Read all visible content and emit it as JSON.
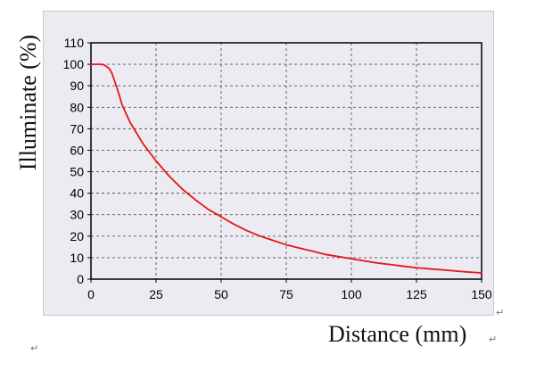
{
  "chart_data": {
    "type": "line",
    "title": "",
    "xlabel": "Distance (mm)",
    "ylabel": "Illuminate (%)",
    "xlim": [
      0,
      150
    ],
    "ylim": [
      0,
      110
    ],
    "xticks": [
      "0",
      "25",
      "50",
      "75",
      "100",
      "125",
      "150"
    ],
    "yticks": [
      "0",
      "10",
      "20",
      "30",
      "40",
      "50",
      "60",
      "70",
      "80",
      "90",
      "100",
      "110"
    ],
    "grid": true,
    "legend": "none",
    "colors": {
      "line": "#e8151b",
      "grid": "#555555",
      "background": "#ecebf1"
    },
    "series": [
      {
        "x": [
          0,
          2,
          4,
          5,
          6,
          7,
          8,
          10,
          12,
          15,
          20,
          25,
          30,
          35,
          40,
          45,
          50,
          55,
          60,
          65,
          70,
          75,
          80,
          85,
          90,
          95,
          100,
          105,
          110,
          115,
          120,
          125,
          130,
          135,
          140,
          145,
          150
        ],
        "y": [
          100,
          100,
          100,
          99.7,
          99,
          98,
          96,
          89,
          81,
          73,
          63,
          55,
          48,
          42,
          37,
          32.5,
          29,
          25.5,
          22.5,
          20,
          18,
          16,
          14.5,
          13,
          11.5,
          10.5,
          9.5,
          8.5,
          7.5,
          6.8,
          6,
          5.3,
          4.8,
          4.3,
          3.8,
          3.3,
          2.9
        ]
      }
    ]
  }
}
